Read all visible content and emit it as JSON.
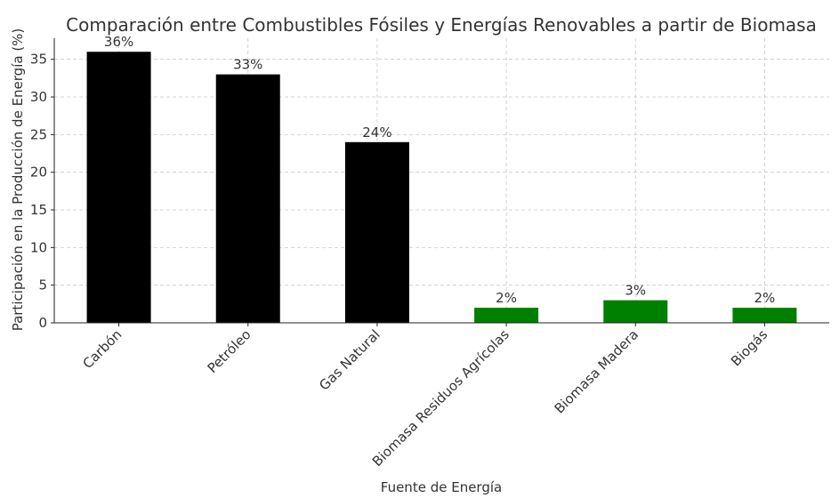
{
  "chart_data": {
    "type": "bar",
    "title": "Comparación entre Combustibles Fósiles y Energías Renovables a partir de Biomasa",
    "xlabel": "Fuente de Energía",
    "ylabel": "Participación en la Producción de Energía (%)",
    "categories": [
      "Carbón",
      "Petróleo",
      "Gas Natural",
      "Biomasa Residuos Agrícolas",
      "Biomasa Madera",
      "Biogás"
    ],
    "values": [
      36,
      33,
      24,
      2,
      3,
      2
    ],
    "data_labels": [
      "36%",
      "33%",
      "24%",
      "2%",
      "3%",
      "2%"
    ],
    "colors": [
      "#000000",
      "#000000",
      "#000000",
      "#008000",
      "#008000",
      "#008000"
    ],
    "ylim": [
      0,
      37.8
    ],
    "yticks": [
      0,
      5,
      10,
      15,
      20,
      25,
      30,
      35
    ],
    "grid": true,
    "legend": false
  }
}
